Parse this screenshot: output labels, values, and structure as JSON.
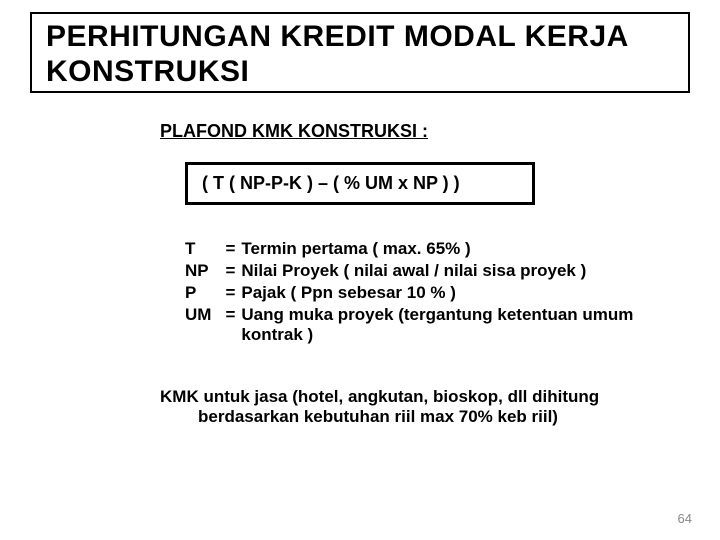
{
  "title": "PERHITUNGAN KREDIT MODAL KERJA KONSTRUKSI",
  "subheading": "PLAFOND KMK KONSTRUKSI :",
  "formula": "( T ( NP-P-K ) – ( % UM x NP ) )",
  "definitions": [
    {
      "symbol": "T",
      "desc": "Termin pertama ( max. 65% )"
    },
    {
      "symbol": "NP",
      "desc": "Nilai Proyek ( nilai awal / nilai sisa proyek )"
    },
    {
      "symbol": "P",
      "desc": "Pajak ( Ppn sebesar 10 % )"
    },
    {
      "symbol": "UM",
      "desc": "Uang muka proyek (tergantung ketentuan umum kontrak )"
    }
  ],
  "note_line1": "KMK untuk jasa (hotel, angkutan, bioskop, dll dihitung",
  "note_line2": "berdasarkan kebutuhan riil max 70% keb riil)",
  "page_number": "64",
  "colors": {
    "text": "#000000",
    "background": "#ffffff",
    "border": "#000000",
    "page_num": "#888888"
  }
}
